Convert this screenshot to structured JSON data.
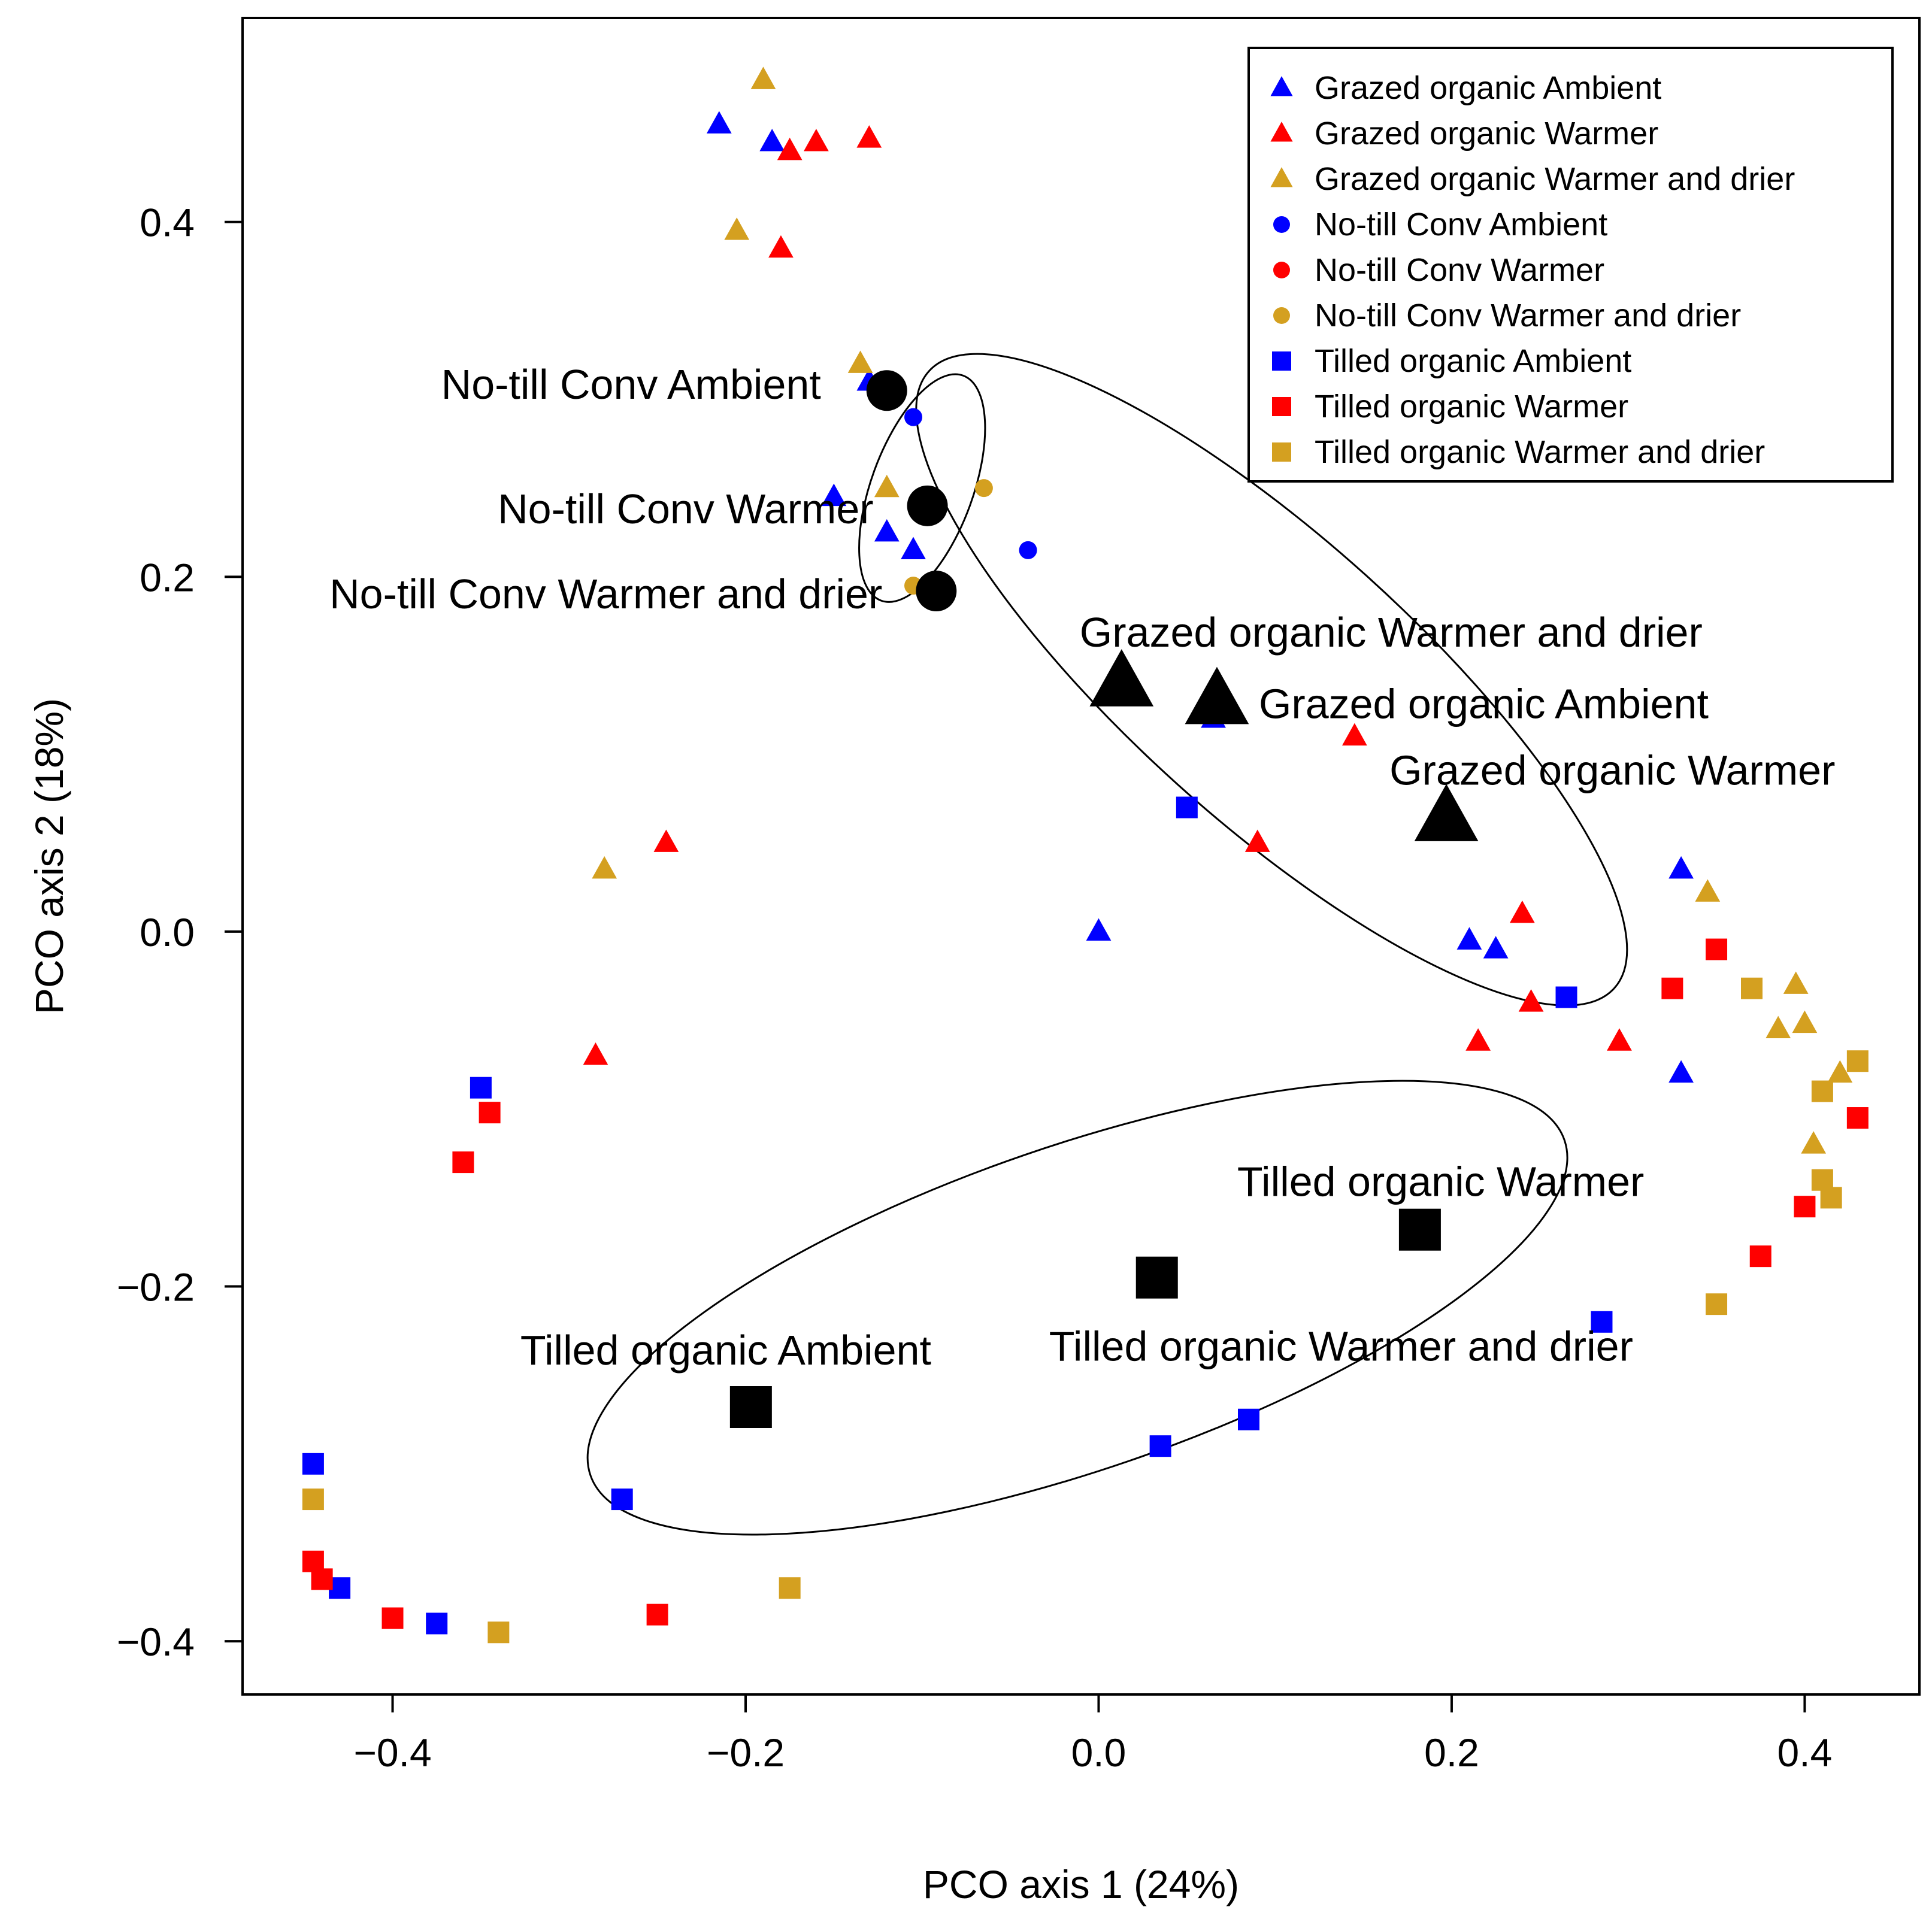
{
  "chart_data": {
    "type": "scatter",
    "title": "",
    "xlabel": "PCO axis 1 (24%)",
    "ylabel": "PCO axis 2 (18%)",
    "xlim": [
      -0.485,
      0.465
    ],
    "ylim": [
      -0.43,
      0.515
    ],
    "x_ticks": [
      -0.4,
      -0.2,
      0.0,
      0.2,
      0.4
    ],
    "y_ticks": [
      -0.4,
      -0.2,
      0.0,
      0.2,
      0.4
    ],
    "x_tick_labels": [
      "−0.4",
      "−0.2",
      "0.0",
      "0.2",
      "0.4"
    ],
    "y_tick_labels": [
      "−0.4",
      "−0.2",
      "0.0",
      "0.2",
      "0.4"
    ],
    "grid": false,
    "legend_position": "top-right",
    "colors": {
      "blue": "#0000ff",
      "red": "#ff0000",
      "gold": "#d4a020",
      "black": "#000000"
    },
    "series": [
      {
        "name": "Grazed organic Ambient",
        "shape": "triangle",
        "color": "#0000ff",
        "points": [
          [
            -0.215,
            0.455
          ],
          [
            -0.185,
            0.445
          ],
          [
            -0.15,
            0.245
          ],
          [
            -0.12,
            0.225
          ],
          [
            -0.105,
            0.215
          ],
          [
            0.065,
            0.12
          ],
          [
            0.0,
            0.0
          ],
          [
            0.21,
            -0.005
          ],
          [
            0.225,
            -0.01
          ],
          [
            0.33,
            0.035
          ],
          [
            0.33,
            -0.08
          ],
          [
            -0.13,
            0.31
          ]
        ]
      },
      {
        "name": "Grazed organic Warmer",
        "shape": "triangle",
        "color": "#ff0000",
        "points": [
          [
            -0.175,
            0.44
          ],
          [
            -0.16,
            0.445
          ],
          [
            -0.13,
            0.447
          ],
          [
            -0.18,
            0.385
          ],
          [
            0.145,
            0.11
          ],
          [
            0.09,
            0.05
          ],
          [
            0.24,
            0.01
          ],
          [
            0.245,
            -0.04
          ],
          [
            0.215,
            -0.062
          ],
          [
            0.295,
            -0.062
          ],
          [
            -0.245,
            0.05
          ],
          [
            -0.285,
            -0.07
          ]
        ]
      },
      {
        "name": "Grazed organic Warmer and drier",
        "shape": "triangle",
        "color": "#d4a020",
        "points": [
          [
            -0.19,
            0.48
          ],
          [
            -0.205,
            0.395
          ],
          [
            -0.135,
            0.32
          ],
          [
            -0.12,
            0.25
          ],
          [
            -0.28,
            0.035
          ],
          [
            0.345,
            0.022
          ],
          [
            0.395,
            -0.03
          ],
          [
            0.4,
            -0.052
          ],
          [
            0.385,
            -0.055
          ],
          [
            0.42,
            -0.08
          ],
          [
            0.405,
            -0.12
          ]
        ]
      },
      {
        "name": "No-till Conv Ambient",
        "shape": "circle",
        "color": "#0000ff",
        "points": [
          [
            -0.105,
            0.29
          ],
          [
            -0.04,
            0.215
          ]
        ]
      },
      {
        "name": "No-till Conv Warmer",
        "shape": "circle",
        "color": "#ff0000",
        "points": []
      },
      {
        "name": "No-till Conv Warmer and drier",
        "shape": "circle",
        "color": "#d4a020",
        "points": [
          [
            -0.065,
            0.25
          ],
          [
            -0.105,
            0.195
          ]
        ]
      },
      {
        "name": "Tilled organic Ambient",
        "shape": "square",
        "color": "#0000ff",
        "points": [
          [
            0.05,
            0.07
          ],
          [
            0.265,
            -0.037
          ],
          [
            -0.35,
            -0.088
          ],
          [
            0.285,
            -0.22
          ],
          [
            0.085,
            -0.275
          ],
          [
            0.035,
            -0.29
          ],
          [
            -0.27,
            -0.32
          ],
          [
            -0.445,
            -0.3
          ],
          [
            -0.43,
            -0.37
          ],
          [
            -0.375,
            -0.39
          ]
        ]
      },
      {
        "name": "Tilled organic Warmer",
        "shape": "square",
        "color": "#ff0000",
        "points": [
          [
            0.35,
            -0.01
          ],
          [
            0.325,
            -0.032
          ],
          [
            -0.345,
            -0.102
          ],
          [
            -0.36,
            -0.13
          ],
          [
            0.43,
            -0.105
          ],
          [
            0.4,
            -0.155
          ],
          [
            0.375,
            -0.183
          ],
          [
            -0.445,
            -0.355
          ],
          [
            -0.44,
            -0.365
          ],
          [
            -0.4,
            -0.387
          ],
          [
            -0.25,
            -0.385
          ]
        ]
      },
      {
        "name": "Tilled organic Warmer and drier",
        "shape": "square",
        "color": "#d4a020",
        "points": [
          [
            0.37,
            -0.032
          ],
          [
            0.43,
            -0.073
          ],
          [
            0.41,
            -0.09
          ],
          [
            0.41,
            -0.14
          ],
          [
            0.415,
            -0.15
          ],
          [
            0.35,
            -0.21
          ],
          [
            -0.175,
            -0.37
          ],
          [
            -0.34,
            -0.395
          ],
          [
            -0.445,
            -0.32
          ]
        ]
      }
    ],
    "centroids": [
      {
        "label": "No-till Conv Ambient",
        "shape": "circle",
        "x": -0.12,
        "y": 0.305
      },
      {
        "label": "No-till Conv Warmer",
        "shape": "circle",
        "x": -0.097,
        "y": 0.24
      },
      {
        "label": "No-till Conv Warmer and drier",
        "shape": "circle",
        "x": -0.092,
        "y": 0.192
      },
      {
        "label": "Grazed organic Warmer and drier",
        "shape": "triangle",
        "x": 0.013,
        "y": 0.14
      },
      {
        "label": "Grazed organic Ambient",
        "shape": "triangle",
        "x": 0.067,
        "y": 0.13
      },
      {
        "label": "Grazed organic Warmer",
        "shape": "triangle",
        "x": 0.197,
        "y": 0.064
      },
      {
        "label": "Tilled organic Warmer",
        "shape": "square",
        "x": 0.182,
        "y": -0.168
      },
      {
        "label": "Tilled organic Warmer and drier",
        "shape": "square",
        "x": 0.033,
        "y": -0.195
      },
      {
        "label": "Tilled organic Ambient",
        "shape": "square",
        "x": -0.197,
        "y": -0.268
      }
    ],
    "ellipses": [
      {
        "group": "No-till Conv",
        "cx": -0.1,
        "cy": 0.25,
        "rx_deg": 0.06,
        "ry": 0.032,
        "angle": 75
      },
      {
        "group": "Grazed organic",
        "cx": 0.1,
        "cy": 0.14,
        "rx": 0.37,
        "ry": 0.125,
        "angle": -42
      },
      {
        "group": "Tilled organic",
        "cx": -0.02,
        "cy": -0.21,
        "rx": 0.43,
        "ry": 0.125,
        "angle": 19
      }
    ]
  }
}
